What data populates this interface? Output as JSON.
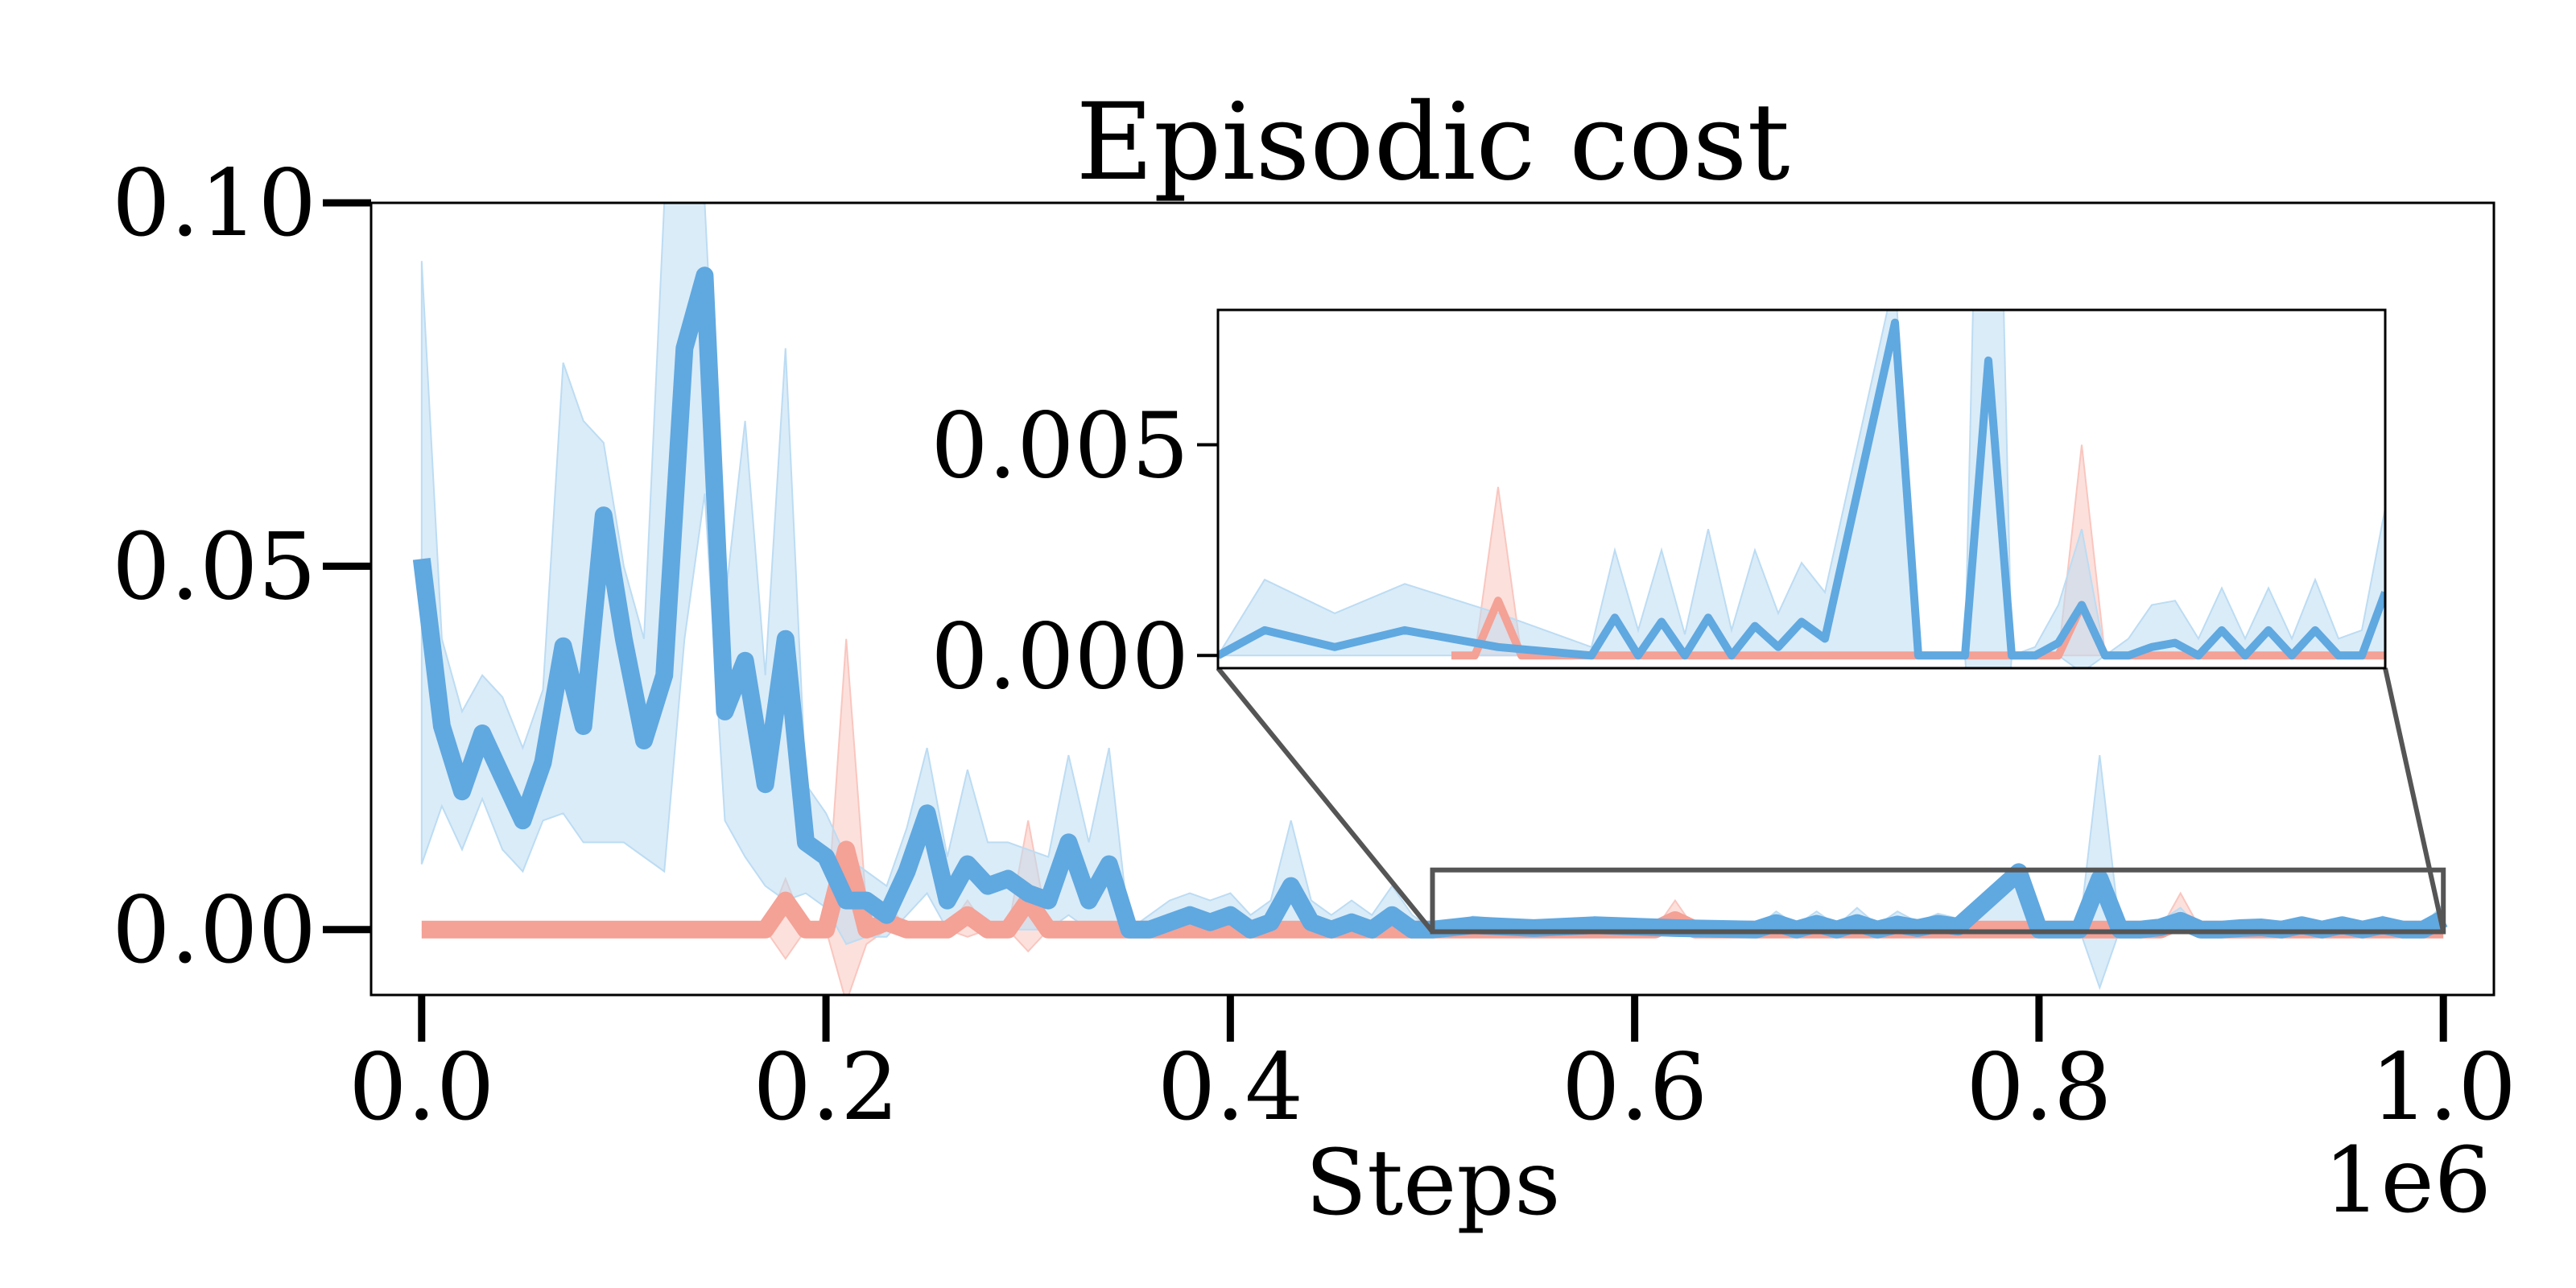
{
  "chart_data": {
    "type": "line",
    "title": "Episodic cost",
    "xlabel": "Steps",
    "x_offset_label": "1e6",
    "ylabel": "",
    "xlim": [
      -0.025,
      1.025
    ],
    "ylim": [
      -0.009,
      0.1
    ],
    "x_ticks": [
      0.0,
      0.2,
      0.4,
      0.6,
      0.8,
      1.0
    ],
    "x_tick_labels": [
      "0.0",
      "0.2",
      "0.4",
      "0.6",
      "0.8",
      "1.0"
    ],
    "y_ticks": [
      0.0,
      0.05,
      0.1
    ],
    "y_tick_labels": [
      "0.00",
      "0.05",
      "0.10"
    ],
    "grid": false,
    "legend": "none",
    "series": [
      {
        "color": "#f4a196",
        "band_color": "#f9c6bf",
        "x": [
          0.0,
          0.17,
          0.18,
          0.19,
          0.2,
          0.21,
          0.22,
          0.23,
          0.24,
          0.25,
          0.26,
          0.27,
          0.28,
          0.29,
          0.3,
          0.31,
          0.32,
          0.33,
          0.34,
          0.35,
          0.6,
          0.61,
          0.62,
          0.63,
          0.86,
          0.87,
          0.88,
          1.0
        ],
        "mean": [
          0.0,
          0.0,
          0.004,
          0.0,
          0.0,
          0.011,
          0.0,
          0.001,
          0.0,
          0.0,
          0.0,
          0.002,
          0.0,
          0.0,
          0.004,
          0.0,
          0.0,
          0.0,
          0.0,
          0.0,
          0.0,
          0.0,
          0.0013,
          0.0,
          0.0,
          0.0012,
          0.0,
          0.0
        ],
        "upper": [
          0.0,
          0.0,
          0.007,
          0.0,
          0.0,
          0.04,
          0.003,
          0.004,
          0.0,
          0.0,
          0.0,
          0.004,
          0.0,
          0.0,
          0.015,
          0.0,
          0.0,
          0.0,
          0.0,
          0.0,
          0.0,
          0.0,
          0.004,
          0.0,
          0.0,
          0.005,
          0.0,
          0.0
        ],
        "lower": [
          0.0,
          0.0,
          -0.004,
          0.0,
          0.0,
          -0.01,
          -0.002,
          0.0,
          0.0,
          0.0,
          0.0,
          -0.001,
          0.0,
          0.0,
          -0.003,
          0.0,
          0.0,
          0.0,
          0.0,
          0.0,
          0.0,
          0.0,
          0.0,
          0.0,
          0.0,
          0.0,
          0.0,
          0.0
        ]
      },
      {
        "color": "#60a8e0",
        "band_color": "#bcdcf3",
        "x": [
          0.0,
          0.01,
          0.02,
          0.03,
          0.04,
          0.05,
          0.06,
          0.07,
          0.08,
          0.09,
          0.1,
          0.11,
          0.12,
          0.13,
          0.14,
          0.15,
          0.16,
          0.17,
          0.18,
          0.19,
          0.2,
          0.21,
          0.22,
          0.23,
          0.24,
          0.25,
          0.26,
          0.27,
          0.28,
          0.29,
          0.3,
          0.31,
          0.32,
          0.33,
          0.34,
          0.35,
          0.36,
          0.37,
          0.38,
          0.39,
          0.4,
          0.41,
          0.42,
          0.43,
          0.44,
          0.45,
          0.46,
          0.47,
          0.48,
          0.49,
          0.5,
          0.52,
          0.55,
          0.58,
          0.62,
          0.66,
          0.67,
          0.68,
          0.69,
          0.7,
          0.71,
          0.72,
          0.73,
          0.74,
          0.75,
          0.76,
          0.79,
          0.8,
          0.81,
          0.82,
          0.83,
          0.84,
          0.85,
          0.86,
          0.87,
          0.88,
          0.89,
          0.9,
          0.91,
          0.92,
          0.93,
          0.94,
          0.95,
          0.96,
          0.97,
          0.98,
          0.99,
          1.0
        ],
        "mean": [
          0.051,
          0.028,
          0.019,
          0.027,
          0.021,
          0.015,
          0.023,
          0.039,
          0.028,
          0.057,
          0.04,
          0.026,
          0.035,
          0.08,
          0.09,
          0.03,
          0.037,
          0.02,
          0.04,
          0.012,
          0.01,
          0.004,
          0.004,
          0.002,
          0.008,
          0.016,
          0.004,
          0.009,
          0.006,
          0.007,
          0.005,
          0.004,
          0.012,
          0.004,
          0.009,
          0.0,
          0.0,
          0.001,
          0.002,
          0.001,
          0.002,
          0.0,
          0.001,
          0.006,
          0.001,
          0.0,
          0.001,
          0.0,
          0.002,
          0.0,
          0.0,
          0.0006,
          0.0002,
          0.0006,
          0.0002,
          0.0,
          0.0009,
          0.0,
          0.0008,
          0.0,
          0.0009,
          0.0,
          0.0007,
          0.0002,
          0.0008,
          0.0004,
          0.0079,
          0.0,
          0.0,
          0.0,
          0.007,
          0.0,
          0.0,
          0.0003,
          0.0012,
          0.0,
          0.0,
          0.0002,
          0.0003,
          0.0,
          0.0006,
          0.0,
          0.0006,
          0.0,
          0.0006,
          0.0,
          0.0,
          0.0015
        ],
        "upper": [
          0.092,
          0.04,
          0.03,
          0.035,
          0.032,
          0.025,
          0.033,
          0.078,
          0.07,
          0.067,
          0.05,
          0.04,
          0.1,
          0.1,
          0.1,
          0.045,
          0.07,
          0.035,
          0.08,
          0.02,
          0.016,
          0.01,
          0.008,
          0.006,
          0.014,
          0.025,
          0.01,
          0.022,
          0.012,
          0.012,
          0.011,
          0.01,
          0.024,
          0.012,
          0.025,
          0.0,
          0.002,
          0.004,
          0.005,
          0.004,
          0.005,
          0.002,
          0.004,
          0.015,
          0.004,
          0.002,
          0.004,
          0.002,
          0.006,
          0.002,
          0.0,
          0.0018,
          0.001,
          0.0017,
          0.001,
          0.0002,
          0.0025,
          0.0006,
          0.0025,
          0.0005,
          0.003,
          0.0006,
          0.0025,
          0.001,
          0.0022,
          0.0015,
          0.009,
          0.0,
          0.0,
          0.0,
          0.024,
          0.0,
          0.0002,
          0.0012,
          0.003,
          0.0,
          0.0004,
          0.0012,
          0.0013,
          0.0004,
          0.0016,
          0.0004,
          0.0016,
          0.0004,
          0.0018,
          0.0004,
          0.0006,
          0.0035
        ],
        "lower": [
          0.009,
          0.017,
          0.011,
          0.018,
          0.011,
          0.008,
          0.015,
          0.016,
          0.012,
          0.012,
          0.012,
          0.01,
          0.008,
          0.04,
          0.06,
          0.015,
          0.01,
          0.006,
          0.004,
          0.005,
          0.003,
          -0.002,
          -0.001,
          -0.001,
          0.002,
          0.005,
          0.0,
          0.001,
          0.001,
          0.0,
          0.0,
          0.0,
          0.002,
          0.0,
          0.0,
          0.0,
          0.0,
          -0.001,
          0.0,
          0.0,
          0.0,
          0.0,
          -0.001,
          0.0,
          0.0,
          0.0,
          -0.001,
          0.0,
          0.0,
          0.0,
          0.0,
          0.0,
          0.0,
          0.0,
          0.0,
          0.0,
          0.0,
          0.0,
          0.0,
          0.0,
          0.0,
          0.0,
          0.0,
          0.0,
          0.0,
          0.0,
          0.0,
          0.0,
          0.0,
          0.0,
          -0.008,
          0.0,
          0.0,
          0.0,
          -0.0004,
          0.0,
          0.0,
          0.0,
          0.0,
          0.0,
          0.0,
          0.0,
          0.0,
          0.0,
          0.0,
          0.0,
          0.0,
          0.0
        ]
      }
    ],
    "inset": {
      "xlim": [
        0.5,
        1.0
      ],
      "ylim": [
        -0.0003,
        0.0082
      ],
      "y_ticks": [
        0.0,
        0.005
      ],
      "y_tick_labels": [
        "0.000",
        "0.005"
      ]
    }
  }
}
